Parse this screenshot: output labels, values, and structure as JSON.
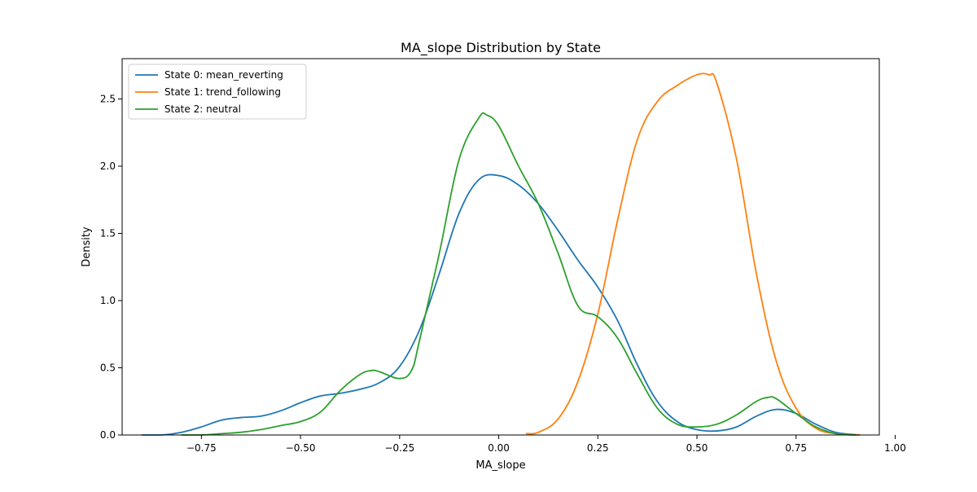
{
  "chart_data": {
    "type": "line",
    "title": "MA_slope Distribution by State",
    "xlabel": "MA_slope",
    "ylabel": "Density",
    "xlim": [
      -0.95,
      0.96
    ],
    "ylim": [
      0,
      2.8
    ],
    "x_ticks": [
      -0.75,
      -0.5,
      -0.25,
      0.0,
      0.25,
      0.5,
      0.75,
      1.0
    ],
    "x_tick_labels": [
      "−0.75",
      "−0.50",
      "−0.25",
      "0.00",
      "0.25",
      "0.50",
      "0.75",
      "1.00"
    ],
    "y_ticks": [
      0,
      0.5,
      1.0,
      1.5,
      2.0,
      2.5
    ],
    "y_tick_labels": [
      "0.0",
      "0.5",
      "1.0",
      "1.5",
      "2.0",
      "2.5"
    ],
    "grid": false,
    "legend_position": "top-left",
    "series": [
      {
        "name": "State 0: mean_reverting",
        "color": "#1f77b4",
        "x": [
          -0.9,
          -0.85,
          -0.8,
          -0.75,
          -0.7,
          -0.65,
          -0.6,
          -0.55,
          -0.5,
          -0.45,
          -0.4,
          -0.35,
          -0.3,
          -0.25,
          -0.2,
          -0.15,
          -0.1,
          -0.05,
          0.0,
          0.05,
          0.1,
          0.15,
          0.2,
          0.25,
          0.3,
          0.35,
          0.4,
          0.45,
          0.5,
          0.55,
          0.6,
          0.65,
          0.7,
          0.75,
          0.8,
          0.85,
          0.91
        ],
        "y": [
          0.0,
          0.0,
          0.02,
          0.06,
          0.11,
          0.13,
          0.14,
          0.18,
          0.24,
          0.29,
          0.31,
          0.34,
          0.39,
          0.51,
          0.78,
          1.2,
          1.65,
          1.9,
          1.93,
          1.86,
          1.72,
          1.52,
          1.3,
          1.1,
          0.85,
          0.52,
          0.25,
          0.1,
          0.04,
          0.03,
          0.06,
          0.14,
          0.19,
          0.16,
          0.08,
          0.02,
          0.0
        ]
      },
      {
        "name": "State 1: trend_following",
        "color": "#ff7f0e",
        "x": [
          0.07,
          0.1,
          0.15,
          0.2,
          0.25,
          0.3,
          0.35,
          0.4,
          0.45,
          0.5,
          0.53,
          0.55,
          0.6,
          0.65,
          0.7,
          0.75,
          0.8,
          0.85,
          0.91
        ],
        "y": [
          0.01,
          0.02,
          0.12,
          0.4,
          0.9,
          1.6,
          2.2,
          2.48,
          2.6,
          2.68,
          2.68,
          2.62,
          2.05,
          1.2,
          0.55,
          0.2,
          0.05,
          0.01,
          0.0
        ]
      },
      {
        "name": "State 2: neutral",
        "color": "#2ca02c",
        "x": [
          -0.8,
          -0.75,
          -0.7,
          -0.65,
          -0.6,
          -0.55,
          -0.5,
          -0.45,
          -0.4,
          -0.35,
          -0.32,
          -0.3,
          -0.25,
          -0.22,
          -0.2,
          -0.15,
          -0.1,
          -0.05,
          -0.03,
          0.0,
          0.05,
          0.1,
          0.15,
          0.2,
          0.25,
          0.3,
          0.35,
          0.4,
          0.45,
          0.5,
          0.55,
          0.6,
          0.65,
          0.68,
          0.7,
          0.75,
          0.8,
          0.85,
          0.9
        ],
        "y": [
          0.0,
          0.0,
          0.01,
          0.02,
          0.04,
          0.07,
          0.1,
          0.17,
          0.33,
          0.45,
          0.48,
          0.47,
          0.42,
          0.48,
          0.7,
          1.35,
          2.05,
          2.36,
          2.38,
          2.3,
          2.0,
          1.72,
          1.35,
          0.96,
          0.88,
          0.72,
          0.45,
          0.2,
          0.08,
          0.06,
          0.08,
          0.15,
          0.25,
          0.28,
          0.27,
          0.16,
          0.06,
          0.01,
          0.0
        ]
      }
    ]
  }
}
